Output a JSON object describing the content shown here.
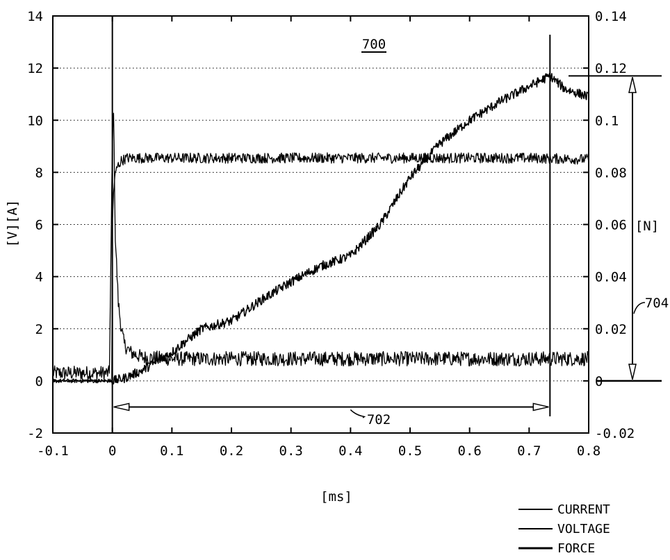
{
  "chart_data": {
    "type": "line",
    "xlabel": "[ms]",
    "ylabel": "[V][A]",
    "y2label": "[N]",
    "xlim": [
      -0.1,
      0.8
    ],
    "ylim": [
      -2,
      14
    ],
    "y2lim": [
      -0.02,
      0.14
    ],
    "grid": "horizontal dotted",
    "legend_position": "bottom-right",
    "xticks": [
      "-0.1",
      "0",
      "0.1",
      "0.2",
      "0.3",
      "0.4",
      "0.5",
      "0.6",
      "0.7",
      "0.8"
    ],
    "xtick_values": [
      -0.1,
      0,
      0.1,
      0.2,
      0.3,
      0.4,
      0.5,
      0.6,
      0.7,
      0.8
    ],
    "yticks": [
      "-2",
      "0",
      "2",
      "4",
      "6",
      "8",
      "10",
      "12",
      "14"
    ],
    "ytick_values": [
      -2,
      0,
      2,
      4,
      6,
      8,
      10,
      12,
      14
    ],
    "y2ticks": [
      "-0.02",
      "0",
      "0.02",
      "0.04",
      "0.06",
      "0.08",
      "0.1",
      "0.12",
      "0.14"
    ],
    "y2tick_values": [
      -0.02,
      0,
      0.02,
      0.04,
      0.06,
      0.08,
      0.1,
      0.12,
      0.14
    ],
    "series": [
      {
        "name": "CURRENT",
        "axis": "left",
        "x": [
          -0.1,
          -0.05,
          -0.005,
          0.0,
          0.002,
          0.005,
          0.01,
          0.015,
          0.02,
          0.03,
          0.05,
          0.1,
          0.2,
          0.3,
          0.4,
          0.5,
          0.6,
          0.7,
          0.8
        ],
        "y": [
          0.3,
          0.3,
          0.3,
          9.0,
          10.5,
          5.5,
          3.0,
          2.0,
          1.4,
          1.1,
          0.9,
          0.85,
          0.85,
          0.85,
          0.85,
          0.85,
          0.85,
          0.85,
          0.85
        ]
      },
      {
        "name": "VOLTAGE",
        "axis": "left",
        "x": [
          -0.1,
          -0.05,
          -0.001,
          0.0,
          0.002,
          0.004,
          0.008,
          0.015,
          0.025,
          0.1,
          0.2,
          0.3,
          0.4,
          0.5,
          0.6,
          0.7,
          0.8
        ],
        "y": [
          0.0,
          0.0,
          0.0,
          6.0,
          7.2,
          7.8,
          8.2,
          8.45,
          8.55,
          8.55,
          8.55,
          8.55,
          8.55,
          8.55,
          8.55,
          8.55,
          8.5
        ]
      },
      {
        "name": "FORCE",
        "axis": "right",
        "x": [
          -0.1,
          0.0,
          0.02,
          0.05,
          0.1,
          0.15,
          0.2,
          0.25,
          0.3,
          0.35,
          0.4,
          0.45,
          0.5,
          0.55,
          0.6,
          0.65,
          0.7,
          0.735,
          0.76,
          0.8
        ],
        "y": [
          0.0,
          0.0,
          0.001,
          0.004,
          0.011,
          0.02,
          0.023,
          0.031,
          0.038,
          0.044,
          0.048,
          0.06,
          0.078,
          0.091,
          0.1,
          0.107,
          0.113,
          0.117,
          0.112,
          0.109
        ]
      }
    ],
    "annotations": {
      "figure_ref": "700",
      "duration_ref": "702",
      "force_ref": "704",
      "duration_x": [
        0,
        0.735
      ],
      "duration_y": -1,
      "force_span": [
        0,
        0.117
      ]
    }
  }
}
